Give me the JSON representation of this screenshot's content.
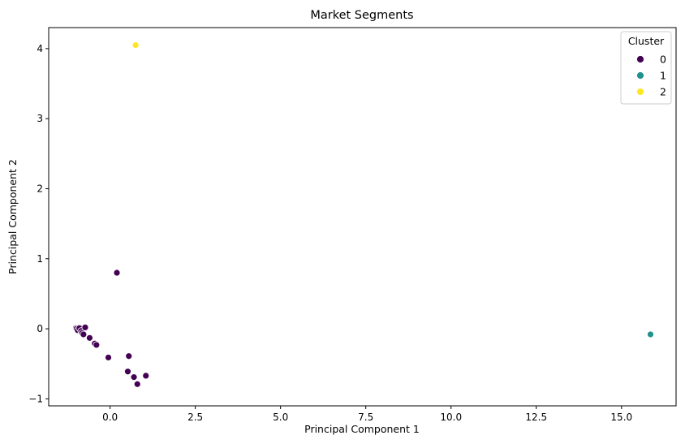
{
  "chart_data": {
    "type": "scatter",
    "title": "Market Segments",
    "xlabel": "Principal Component 1",
    "ylabel": "Principal Component 2",
    "xlim": [
      -1.8,
      16.6
    ],
    "ylim": [
      -1.1,
      4.3
    ],
    "xticks": [
      0.0,
      2.5,
      5.0,
      7.5,
      10.0,
      12.5,
      15.0
    ],
    "xtick_labels": [
      "0.0",
      "2.5",
      "5.0",
      "7.5",
      "10.0",
      "12.5",
      "15.0"
    ],
    "yticks": [
      -1,
      0,
      1,
      2,
      3,
      4
    ],
    "ytick_labels": [
      "−1",
      "0",
      "1",
      "2",
      "3",
      "4"
    ],
    "grid": false,
    "legend": {
      "title": "Cluster",
      "placement": "top-right"
    },
    "series": [
      {
        "name": "0",
        "color": "#440154",
        "points": [
          [
            -1.0,
            0.01
          ],
          [
            -0.98,
            0.0
          ],
          [
            -0.95,
            -0.02
          ],
          [
            -0.9,
            0.01
          ],
          [
            -0.85,
            -0.03
          ],
          [
            -0.82,
            -0.06
          ],
          [
            -0.78,
            -0.08
          ],
          [
            -0.73,
            0.02
          ],
          [
            -0.6,
            -0.13
          ],
          [
            -0.45,
            -0.21
          ],
          [
            -0.4,
            -0.23
          ],
          [
            -0.05,
            -0.41
          ],
          [
            0.55,
            -0.39
          ],
          [
            0.52,
            -0.61
          ],
          [
            0.7,
            -0.69
          ],
          [
            0.8,
            -0.79
          ],
          [
            1.05,
            -0.67
          ],
          [
            0.2,
            0.8
          ]
        ]
      },
      {
        "name": "1",
        "color": "#21918c",
        "points": [
          [
            15.85,
            -0.08
          ]
        ]
      },
      {
        "name": "2",
        "color": "#fde725",
        "points": [
          [
            0.75,
            4.05
          ]
        ]
      }
    ]
  }
}
